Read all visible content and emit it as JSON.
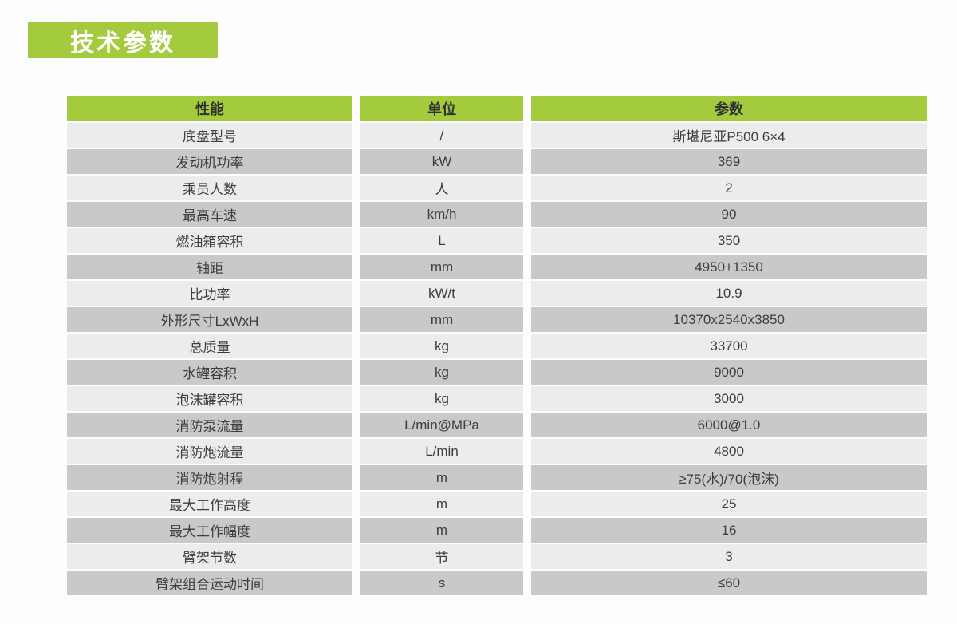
{
  "page": {
    "title": "技术参数"
  },
  "colors": {
    "accent_green": "#a4cb3e",
    "row_light": "#ececec",
    "row_dark": "#c8c9c9",
    "text": "#3d3d3d",
    "title_text": "#ffffff"
  },
  "table": {
    "headers": [
      "性能",
      "单位",
      "参数"
    ],
    "rows": [
      [
        "底盘型号",
        "/",
        "斯堪尼亚P500 6×4"
      ],
      [
        "发动机功率",
        "kW",
        "369"
      ],
      [
        "乘员人数",
        "人",
        "2"
      ],
      [
        "最高车速",
        "km/h",
        "90"
      ],
      [
        "燃油箱容积",
        "L",
        "350"
      ],
      [
        "轴距",
        "mm",
        "4950+1350"
      ],
      [
        "比功率",
        "kW/t",
        "10.9"
      ],
      [
        "外形尺寸LxWxH",
        "mm",
        "10370x2540x3850"
      ],
      [
        "总质量",
        "kg",
        "33700"
      ],
      [
        "水罐容积",
        "kg",
        "9000"
      ],
      [
        "泡沫罐容积",
        "kg",
        "3000"
      ],
      [
        "消防泵流量",
        "L/min@MPa",
        "6000@1.0"
      ],
      [
        "消防炮流量",
        "L/min",
        "4800"
      ],
      [
        "消防炮射程",
        "m",
        "≥75(水)/70(泡沫)"
      ],
      [
        "最大工作高度",
        "m",
        "25"
      ],
      [
        "最大工作幅度",
        "m",
        "16"
      ],
      [
        "臂架节数",
        "节",
        "3"
      ],
      [
        "臂架组合运动时间",
        "s",
        "≤60"
      ]
    ]
  }
}
